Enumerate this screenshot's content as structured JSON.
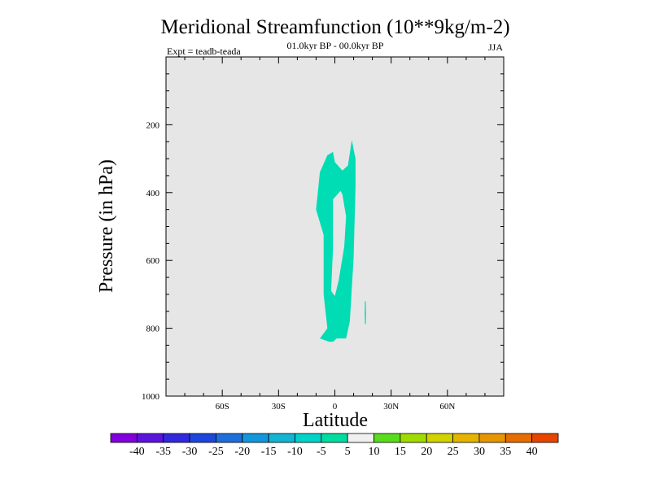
{
  "chart_data": {
    "type": "contour",
    "title": "Meridional Streamfunction (10**9kg/m-2)",
    "subtitle": "01.0kyr BP - 00.0kyr BP",
    "left_label": "Expt = teadb-teada",
    "right_label": "JJA",
    "xlabel": "Latitude",
    "ylabel": "Pressure (in hPa)",
    "xlim": [
      -90,
      90
    ],
    "ylim": [
      1000,
      0
    ],
    "x_ticks": [
      {
        "value": -60,
        "label": "60S"
      },
      {
        "value": -30,
        "label": "30S"
      },
      {
        "value": 0,
        "label": "0"
      },
      {
        "value": 30,
        "label": "30N"
      },
      {
        "value": 60,
        "label": "60N"
      }
    ],
    "x_minor_step": 10,
    "y_ticks": [
      {
        "value": 200,
        "label": "200"
      },
      {
        "value": 400,
        "label": "400"
      },
      {
        "value": 600,
        "label": "600"
      },
      {
        "value": 800,
        "label": "800"
      },
      {
        "value": 1000,
        "label": "1000"
      }
    ],
    "y_minor_step": 50,
    "background_color": "#e6e6e6",
    "regions": [
      {
        "name": "main-contour",
        "level": "-10 to -5",
        "color": "#00dcb4",
        "outer": [
          [
            -8,
            830
          ],
          [
            -4,
            800
          ],
          [
            -6,
            700
          ],
          [
            -6,
            525
          ],
          [
            -10,
            450
          ],
          [
            -8,
            340
          ],
          [
            -4,
            290
          ],
          [
            -1,
            280
          ],
          [
            0,
            310
          ],
          [
            4,
            335
          ],
          [
            7,
            320
          ],
          [
            9,
            245
          ],
          [
            11,
            300
          ],
          [
            11,
            380
          ],
          [
            10,
            590
          ],
          [
            8,
            780
          ],
          [
            6,
            830
          ],
          [
            1,
            830
          ],
          [
            -1,
            840
          ],
          [
            -3,
            840
          ]
        ],
        "hole": [
          [
            -1,
            565
          ],
          [
            -1,
            420
          ],
          [
            3,
            395
          ],
          [
            4,
            405
          ],
          [
            6,
            470
          ],
          [
            5,
            560
          ],
          [
            2,
            660
          ],
          [
            0,
            705
          ],
          [
            -2,
            690
          ]
        ]
      },
      {
        "name": "small-contour",
        "level": "-10 to -5",
        "color": "#00dcb4",
        "outer": [
          [
            16,
            720
          ],
          [
            16.5,
            720
          ],
          [
            16.6,
            760
          ],
          [
            16.5,
            790
          ],
          [
            16,
            785
          ],
          [
            15.9,
            760
          ]
        ]
      }
    ],
    "colorbar": {
      "levels": [
        "-40",
        "-35",
        "-30",
        "-25",
        "-20",
        "-15",
        "-10",
        "-5",
        "5",
        "10",
        "15",
        "20",
        "25",
        "30",
        "35",
        "40"
      ],
      "colors": [
        "#8200dc",
        "#5a14dc",
        "#3228dc",
        "#1e46dc",
        "#1e6edc",
        "#1496dc",
        "#14b4d2",
        "#00d2c8",
        "#00dca0",
        "#f0f0f0",
        "#5adc1e",
        "#a0dc00",
        "#d2d200",
        "#e6b400",
        "#e69600",
        "#e66e00",
        "#e64600"
      ]
    }
  }
}
